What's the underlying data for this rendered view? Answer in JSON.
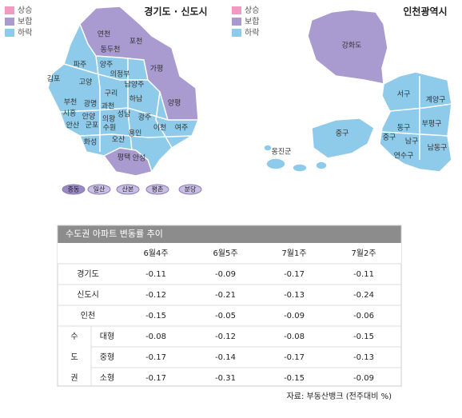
{
  "map_gyeonggi": {
    "title": "경기도 · 신도시",
    "legend": [
      {
        "label": "상승",
        "color": "#f29ac3"
      },
      {
        "label": "보합",
        "color": "#a99ad0"
      },
      {
        "label": "하락",
        "color": "#8ecbea"
      }
    ],
    "regions": [
      "연천",
      "포천",
      "동두천",
      "파주",
      "양주",
      "가평",
      "의정부",
      "김포",
      "고양",
      "남양주",
      "구리",
      "하남",
      "양평",
      "부천",
      "광명",
      "과천",
      "성남",
      "시흥",
      "안양",
      "의왕",
      "광주",
      "안산",
      "군포",
      "수원",
      "이천",
      "여주",
      "용인",
      "화성",
      "오산",
      "평택",
      "안성"
    ],
    "new_towns": [
      {
        "label": "중동",
        "color": "#9a89c4"
      },
      {
        "label": "일산",
        "color": "#c8bfe3"
      },
      {
        "label": "산본",
        "color": "#c8bfe3"
      },
      {
        "label": "평촌",
        "color": "#c8bfe3"
      },
      {
        "label": "분당",
        "color": "#c8bfe3"
      }
    ]
  },
  "map_incheon": {
    "title": "인천광역시",
    "legend": [
      {
        "label": "상승",
        "color": "#f29ac3"
      },
      {
        "label": "보합",
        "color": "#a99ad0"
      },
      {
        "label": "하락",
        "color": "#8ecbea"
      }
    ],
    "regions": [
      "강화도",
      "서구",
      "계양구",
      "동구",
      "부평구",
      "중구",
      "중구",
      "남구",
      "남동구",
      "연수구",
      "옹진군"
    ]
  },
  "table": {
    "title": "수도권 아파트 변동률 추이",
    "columns": [
      "6월4주",
      "6월5주",
      "7월1주",
      "7월2주"
    ],
    "group_labels": [
      "수",
      "도",
      "권"
    ],
    "rows": [
      {
        "label": "경기도",
        "values": [
          -0.11,
          -0.09,
          -0.17,
          -0.11
        ]
      },
      {
        "label": "신도시",
        "values": [
          -0.12,
          -0.21,
          -0.13,
          -0.24
        ]
      },
      {
        "label": "인천",
        "values": [
          -0.15,
          -0.05,
          -0.09,
          -0.06
        ]
      },
      {
        "label": "대형",
        "values": [
          -0.08,
          -0.12,
          -0.08,
          -0.15
        ]
      },
      {
        "label": "중형",
        "values": [
          -0.17,
          -0.14,
          -0.17,
          -0.13
        ]
      },
      {
        "label": "소형",
        "values": [
          -0.17,
          -0.31,
          -0.15,
          -0.09
        ]
      }
    ],
    "source": "자료: 부동산뱅크 (전주대비 %)"
  }
}
